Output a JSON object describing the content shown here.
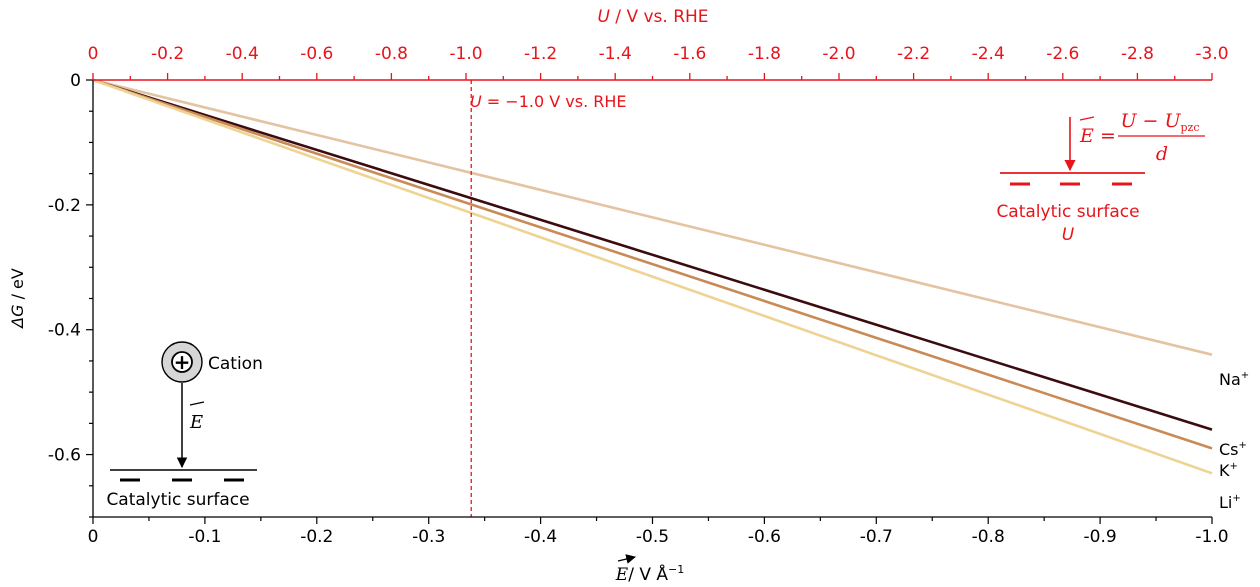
{
  "chart_data": {
    "type": "line",
    "xlabel": {
      "vec": "E",
      "unit": "/ V Å",
      "sup": "−1"
    },
    "ylabel": {
      "sym": "ΔG",
      "unit": " / eV"
    },
    "top_axis": {
      "sym": "U",
      "unit": " / V vs. RHE",
      "color": "#e8141b"
    },
    "xlim": [
      0,
      -1.0
    ],
    "ylim": [
      0,
      -0.7
    ],
    "x_ticks": [
      0,
      -0.1,
      -0.2,
      -0.3,
      -0.4,
      -0.5,
      -0.6,
      -0.7,
      -0.8,
      -0.9,
      -1.0
    ],
    "x_tick_labels": [
      "0",
      "-0.1",
      "-0.2",
      "-0.3",
      "-0.4",
      "-0.5",
      "-0.6",
      "-0.7",
      "-0.8",
      "-0.9",
      "-1.0"
    ],
    "y_ticks": [
      0,
      -0.2,
      -0.4,
      -0.6
    ],
    "y_tick_labels": [
      "0",
      "-0.2",
      "-0.4",
      "-0.6"
    ],
    "top_ticks": [
      0,
      -0.2,
      -0.4,
      -0.6,
      -0.8,
      -1.0,
      -1.2,
      -1.4,
      -1.6,
      -1.8,
      -2.0,
      -2.2,
      -2.4,
      -2.6,
      -2.8,
      -3.0
    ],
    "top_tick_labels": [
      "0",
      "-0.2",
      "-0.4",
      "-0.6",
      "-0.8",
      "-1.0",
      "-1.2",
      "-1.4",
      "-1.6",
      "-1.8",
      "-2.0",
      "-2.2",
      "-2.4",
      "-2.6",
      "-2.8",
      "-3.0"
    ],
    "top_range": [
      0,
      -3.0
    ],
    "series": [
      {
        "name": "Na",
        "sup": "+",
        "color": "#e3c3a0",
        "x": [
          0,
          -1.0
        ],
        "y": [
          0,
          -0.44
        ]
      },
      {
        "name": "Cs",
        "sup": "+",
        "color": "#3a0c10",
        "x": [
          0,
          -1.0
        ],
        "y": [
          0,
          -0.56
        ]
      },
      {
        "name": "K",
        "sup": "+",
        "color": "#c98a55",
        "x": [
          0,
          -1.0
        ],
        "y": [
          0,
          -0.59
        ]
      },
      {
        "name": "Li",
        "sup": "+",
        "color": "#eed393",
        "x": [
          0,
          -1.0
        ],
        "y": [
          0,
          -0.63
        ]
      }
    ],
    "reference_line": {
      "x": -0.338,
      "label_sym": "U",
      "label_text": " = −1.0 V vs. RHE",
      "color": "#e8141b"
    }
  },
  "inset_left": {
    "cation_label": "Cation",
    "field_symbol": "E",
    "surface_label": "Catalytic surface",
    "plus": "+"
  },
  "inset_right": {
    "field_symbol": "E",
    "equals": "=",
    "numerator_a": "U",
    "numerator_minus": " − ",
    "numerator_b": "U",
    "numerator_sub": "pzc",
    "denominator": "d",
    "surface_label": "Catalytic surface",
    "potential_label": "U",
    "color": "#e8141b"
  }
}
